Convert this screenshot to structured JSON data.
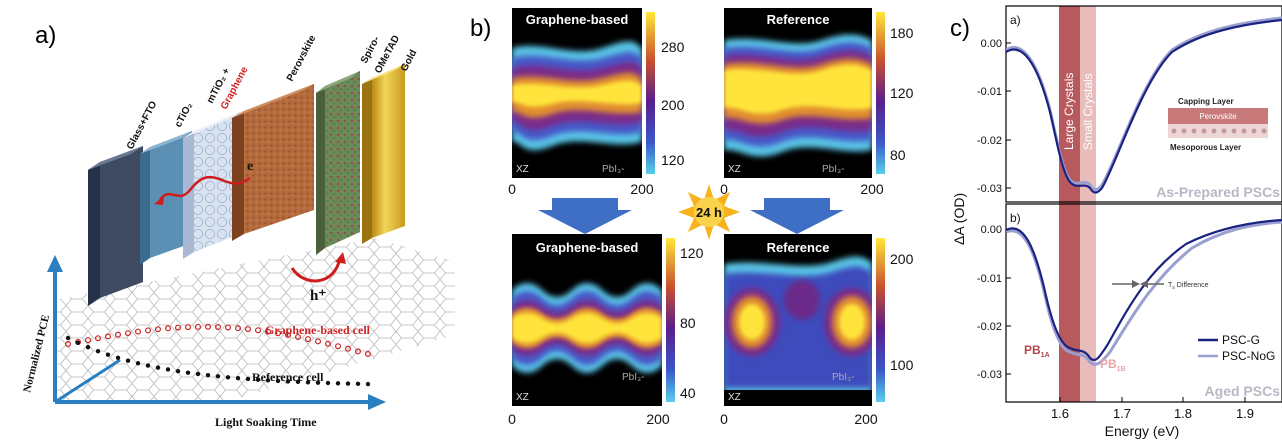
{
  "panel_a": {
    "label": "a)",
    "layers": [
      {
        "name": "Glass+FTO",
        "color": "#3d4a62"
      },
      {
        "name": "cTiO₂",
        "color": "#5b8fb3"
      },
      {
        "name": "mTiO₂ +",
        "color": "#d9e3ef"
      },
      {
        "name": "Graphene",
        "color": "#d9e3ef"
      },
      {
        "name": "Perovskite",
        "color": "#b46a3c"
      },
      {
        "name": "Spiro-",
        "color": "#6a8a5a"
      },
      {
        "name": "OMeTAD",
        "color": "#6a8a5a"
      },
      {
        "name": "Gold",
        "color": "#e4c23c"
      }
    ],
    "electron_label": "e",
    "hole_label": "h⁺",
    "y_axis_label": "Normalized PCE",
    "x_axis_label": "Light Soaking Time",
    "series_graphene_label": "Graphene-based cell",
    "series_reference_label": "Reference cell",
    "colors": {
      "graphene_series": "#cc2222",
      "reference_series": "#111111",
      "axis": "#2a7fc0"
    }
  },
  "panel_b": {
    "label": "b)",
    "badge": "24 h",
    "maps": [
      {
        "title": "Graphene-based",
        "corner": "XZ",
        "species": "PbI₃-",
        "ticks": [
          "280",
          "200",
          "120"
        ],
        "xticks": [
          "0",
          "200"
        ]
      },
      {
        "title": "Reference",
        "corner": "XZ",
        "species": "PbI₃-",
        "ticks": [
          "180",
          "120",
          "80"
        ],
        "xticks": [
          "0",
          "200"
        ]
      },
      {
        "title": "Graphene-based",
        "corner": "XZ",
        "species": "PbI₃-",
        "ticks": [
          "120",
          "80",
          "40"
        ],
        "xticks": [
          "0",
          "200"
        ]
      },
      {
        "title": "Reference",
        "corner": "XZ",
        "species": "PbI₃-",
        "ticks": [
          "200",
          "100"
        ],
        "xticks": [
          "0",
          "200"
        ]
      }
    ]
  },
  "panel_c": {
    "label": "c)",
    "sub_a": "a)",
    "sub_b": "b)",
    "ylabel": "ΔA (OD)",
    "xlabel": "Energy (eV)",
    "xticks": [
      "1.6",
      "1.7",
      "1.8",
      "1.9"
    ],
    "yticks_a": [
      "0.00",
      "-0.01",
      "-0.02",
      "-0.03"
    ],
    "yticks_b": [
      "0.00",
      "-0.01",
      "-0.02",
      "-0.03"
    ],
    "band_large": "Large Crystals",
    "band_small": "Small Crystals",
    "inset_capping": "Capping Layer",
    "inset_perovskite": "Perovskite",
    "inset_mesoporous": "Mesoporous Layer",
    "tag_a": "As-Prepared PSCs",
    "tag_b": "Aged PSCs",
    "pb1a": "PB",
    "pb1a_sub": "1A",
    "pb1b": "PB",
    "pb1b_sub": "1B",
    "ts_note": "T",
    "ts_note_sub": "s",
    "ts_note_rest": " Difference",
    "legend": [
      "PSC-G",
      "PSC-NoG"
    ],
    "colors": {
      "psc_g": "#1a2380",
      "psc_nog": "#9a9fd0",
      "band_large": "#b0474b",
      "band_small": "#e7b5b5"
    }
  }
}
